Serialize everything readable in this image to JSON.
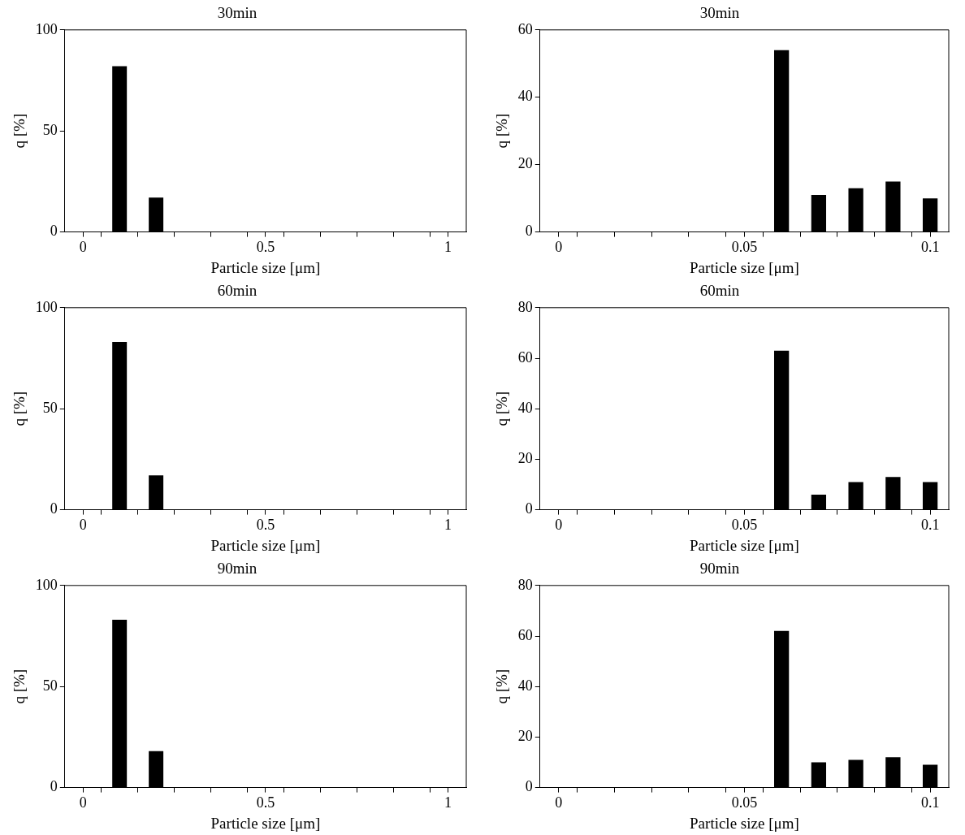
{
  "chart_data": [
    {
      "type": "bar",
      "title": "30min",
      "xlabel": "Particle size [μm]",
      "ylabel": "q [%]",
      "color": "#000000",
      "grid": false,
      "legend": false,
      "x": [
        0,
        0.1,
        0.2,
        0.3,
        0.4,
        0.5,
        0.6,
        0.7,
        0.8,
        0.9,
        1
      ],
      "values": [
        0,
        82,
        17,
        0,
        0,
        0,
        0,
        0,
        0,
        0,
        0
      ],
      "xlim": [
        -0.05,
        1.05
      ],
      "xticks": [
        0,
        {
          "value": 0.05,
          "label": null
        },
        {
          "value": 0.15,
          "label": null
        },
        {
          "value": 0.25,
          "label": null
        },
        {
          "value": 0.35,
          "label": null
        },
        {
          "value": 0.45,
          "label": null
        },
        0.5,
        {
          "value": 0.55,
          "label": null
        },
        {
          "value": 0.65,
          "label": null
        },
        {
          "value": 0.75,
          "label": null
        },
        {
          "value": 0.85,
          "label": null
        },
        {
          "value": 0.95,
          "label": null
        },
        1
      ],
      "ylim": [
        0,
        100
      ],
      "yticks": [
        0,
        50,
        100
      ]
    },
    {
      "type": "bar",
      "title": "30min",
      "xlabel": "Particle size [μm]",
      "ylabel": "q [%]",
      "color": "#000000",
      "grid": false,
      "legend": false,
      "x": [
        0,
        0.01,
        0.02,
        0.03,
        0.04,
        0.05,
        0.06,
        0.07,
        0.08,
        0.09,
        0.1
      ],
      "values": [
        0,
        0,
        0,
        0,
        0,
        0,
        54,
        11,
        13,
        15,
        10
      ],
      "xlim": [
        -0.005,
        0.105
      ],
      "xticks": [
        0,
        {
          "value": 0.005,
          "label": null
        },
        {
          "value": 0.015,
          "label": null
        },
        {
          "value": 0.025,
          "label": null
        },
        {
          "value": 0.035,
          "label": null
        },
        {
          "value": 0.045,
          "label": null
        },
        0.05,
        {
          "value": 0.055,
          "label": null
        },
        {
          "value": 0.065,
          "label": null
        },
        {
          "value": 0.075,
          "label": null
        },
        {
          "value": 0.085,
          "label": null
        },
        {
          "value": 0.095,
          "label": null
        },
        0.1
      ],
      "ylim": [
        0,
        60
      ],
      "yticks": [
        0,
        20,
        40,
        60
      ]
    },
    {
      "type": "bar",
      "title": "60min",
      "xlabel": "Particle size [μm]",
      "ylabel": "q [%]",
      "color": "#000000",
      "grid": false,
      "legend": false,
      "x": [
        0,
        0.1,
        0.2,
        0.3,
        0.4,
        0.5,
        0.6,
        0.7,
        0.8,
        0.9,
        1
      ],
      "values": [
        0,
        83,
        17,
        0,
        0,
        0,
        0,
        0,
        0,
        0,
        0
      ],
      "xlim": [
        -0.05,
        1.05
      ],
      "xticks": [
        0,
        {
          "value": 0.05,
          "label": null
        },
        {
          "value": 0.15,
          "label": null
        },
        {
          "value": 0.25,
          "label": null
        },
        {
          "value": 0.35,
          "label": null
        },
        {
          "value": 0.45,
          "label": null
        },
        0.5,
        {
          "value": 0.55,
          "label": null
        },
        {
          "value": 0.65,
          "label": null
        },
        {
          "value": 0.75,
          "label": null
        },
        {
          "value": 0.85,
          "label": null
        },
        {
          "value": 0.95,
          "label": null
        },
        1
      ],
      "ylim": [
        0,
        100
      ],
      "yticks": [
        0,
        50,
        100
      ]
    },
    {
      "type": "bar",
      "title": "60min",
      "xlabel": "Particle size [μm]",
      "ylabel": "q [%]",
      "color": "#000000",
      "grid": false,
      "legend": false,
      "x": [
        0,
        0.01,
        0.02,
        0.03,
        0.04,
        0.05,
        0.06,
        0.07,
        0.08,
        0.09,
        0.1
      ],
      "values": [
        0,
        0,
        0,
        0,
        0,
        0,
        63,
        6,
        11,
        13,
        11
      ],
      "xlim": [
        -0.005,
        0.105
      ],
      "xticks": [
        0,
        {
          "value": 0.005,
          "label": null
        },
        {
          "value": 0.015,
          "label": null
        },
        {
          "value": 0.025,
          "label": null
        },
        {
          "value": 0.035,
          "label": null
        },
        {
          "value": 0.045,
          "label": null
        },
        0.05,
        {
          "value": 0.055,
          "label": null
        },
        {
          "value": 0.065,
          "label": null
        },
        {
          "value": 0.075,
          "label": null
        },
        {
          "value": 0.085,
          "label": null
        },
        {
          "value": 0.095,
          "label": null
        },
        0.1
      ],
      "ylim": [
        0,
        80
      ],
      "yticks": [
        0,
        20,
        40,
        60,
        80
      ]
    },
    {
      "type": "bar",
      "title": "90min",
      "xlabel": "Particle size [μm]",
      "ylabel": "q [%]",
      "color": "#000000",
      "grid": false,
      "legend": false,
      "x": [
        0,
        0.1,
        0.2,
        0.3,
        0.4,
        0.5,
        0.6,
        0.7,
        0.8,
        0.9,
        1
      ],
      "values": [
        0,
        83,
        18,
        0,
        0,
        0,
        0,
        0,
        0,
        0,
        0
      ],
      "xlim": [
        -0.05,
        1.05
      ],
      "xticks": [
        0,
        {
          "value": 0.05,
          "label": null
        },
        {
          "value": 0.15,
          "label": null
        },
        {
          "value": 0.25,
          "label": null
        },
        {
          "value": 0.35,
          "label": null
        },
        {
          "value": 0.45,
          "label": null
        },
        0.5,
        {
          "value": 0.55,
          "label": null
        },
        {
          "value": 0.65,
          "label": null
        },
        {
          "value": 0.75,
          "label": null
        },
        {
          "value": 0.85,
          "label": null
        },
        {
          "value": 0.95,
          "label": null
        },
        1
      ],
      "ylim": [
        0,
        100
      ],
      "yticks": [
        0,
        50,
        100
      ]
    },
    {
      "type": "bar",
      "title": "90min",
      "xlabel": "Particle size [μm]",
      "ylabel": "q [%]",
      "color": "#000000",
      "grid": false,
      "legend": false,
      "x": [
        0,
        0.01,
        0.02,
        0.03,
        0.04,
        0.05,
        0.06,
        0.07,
        0.08,
        0.09,
        0.1
      ],
      "values": [
        0,
        0,
        0,
        0,
        0,
        0,
        62,
        10,
        11,
        12,
        9
      ],
      "xlim": [
        -0.005,
        0.105
      ],
      "xticks": [
        0,
        {
          "value": 0.005,
          "label": null
        },
        {
          "value": 0.015,
          "label": null
        },
        {
          "value": 0.025,
          "label": null
        },
        {
          "value": 0.035,
          "label": null
        },
        {
          "value": 0.045,
          "label": null
        },
        0.05,
        {
          "value": 0.055,
          "label": null
        },
        {
          "value": 0.065,
          "label": null
        },
        {
          "value": 0.075,
          "label": null
        },
        {
          "value": 0.085,
          "label": null
        },
        {
          "value": 0.095,
          "label": null
        },
        0.1
      ],
      "ylim": [
        0,
        80
      ],
      "yticks": [
        0,
        20,
        40,
        60,
        80
      ]
    }
  ]
}
